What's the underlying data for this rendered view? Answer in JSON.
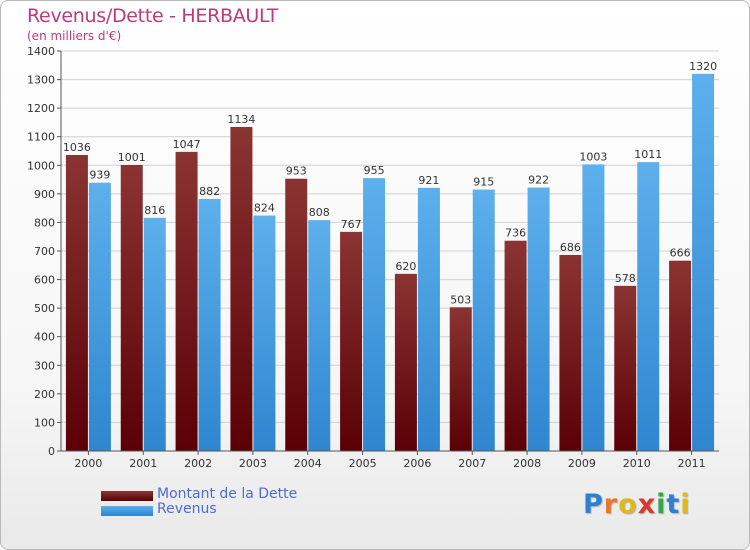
{
  "header": {
    "title": "Revenus/Dette - HERBAULT",
    "subtitle": "(en milliers d'€)"
  },
  "legend": {
    "items": [
      {
        "label": "Montant de la Dette",
        "color": "#6b0f12"
      },
      {
        "label": "Revenus",
        "color": "#4aa3e6"
      }
    ]
  },
  "logo": {
    "letters": [
      {
        "char": "P",
        "color": "#2d7fd1"
      },
      {
        "char": "r",
        "color": "#e8762d"
      },
      {
        "char": "o",
        "color": "#e0b81e"
      },
      {
        "char": "x",
        "color": "#d93a2b"
      },
      {
        "char": "i",
        "color": "#3aa548"
      },
      {
        "char": "t",
        "color": "#2d7fd1"
      },
      {
        "char": "i",
        "color": "#e0b81e"
      }
    ]
  },
  "chart_data": {
    "type": "bar",
    "title": "Revenus/Dette - HERBAULT",
    "subtitle": "(en milliers d'€)",
    "categories": [
      "2000",
      "2001",
      "2002",
      "2003",
      "2004",
      "2005",
      "2006",
      "2007",
      "2008",
      "2009",
      "2010",
      "2011"
    ],
    "series": [
      {
        "name": "Montant de la Dette",
        "color": "#6b0f12",
        "values": [
          1036,
          1001,
          1047,
          1134,
          953,
          767,
          620,
          503,
          736,
          686,
          578,
          666
        ]
      },
      {
        "name": "Revenus",
        "color": "#4aa3e6",
        "values": [
          939,
          816,
          882,
          824,
          808,
          955,
          921,
          915,
          922,
          1003,
          1011,
          1320
        ]
      }
    ],
    "ylim": [
      0,
      1400
    ],
    "yticks": [
      0,
      100,
      200,
      300,
      400,
      500,
      600,
      700,
      800,
      900,
      1000,
      1100,
      1200,
      1300,
      1400
    ],
    "grid": true,
    "legend_position": "bottom-left"
  }
}
